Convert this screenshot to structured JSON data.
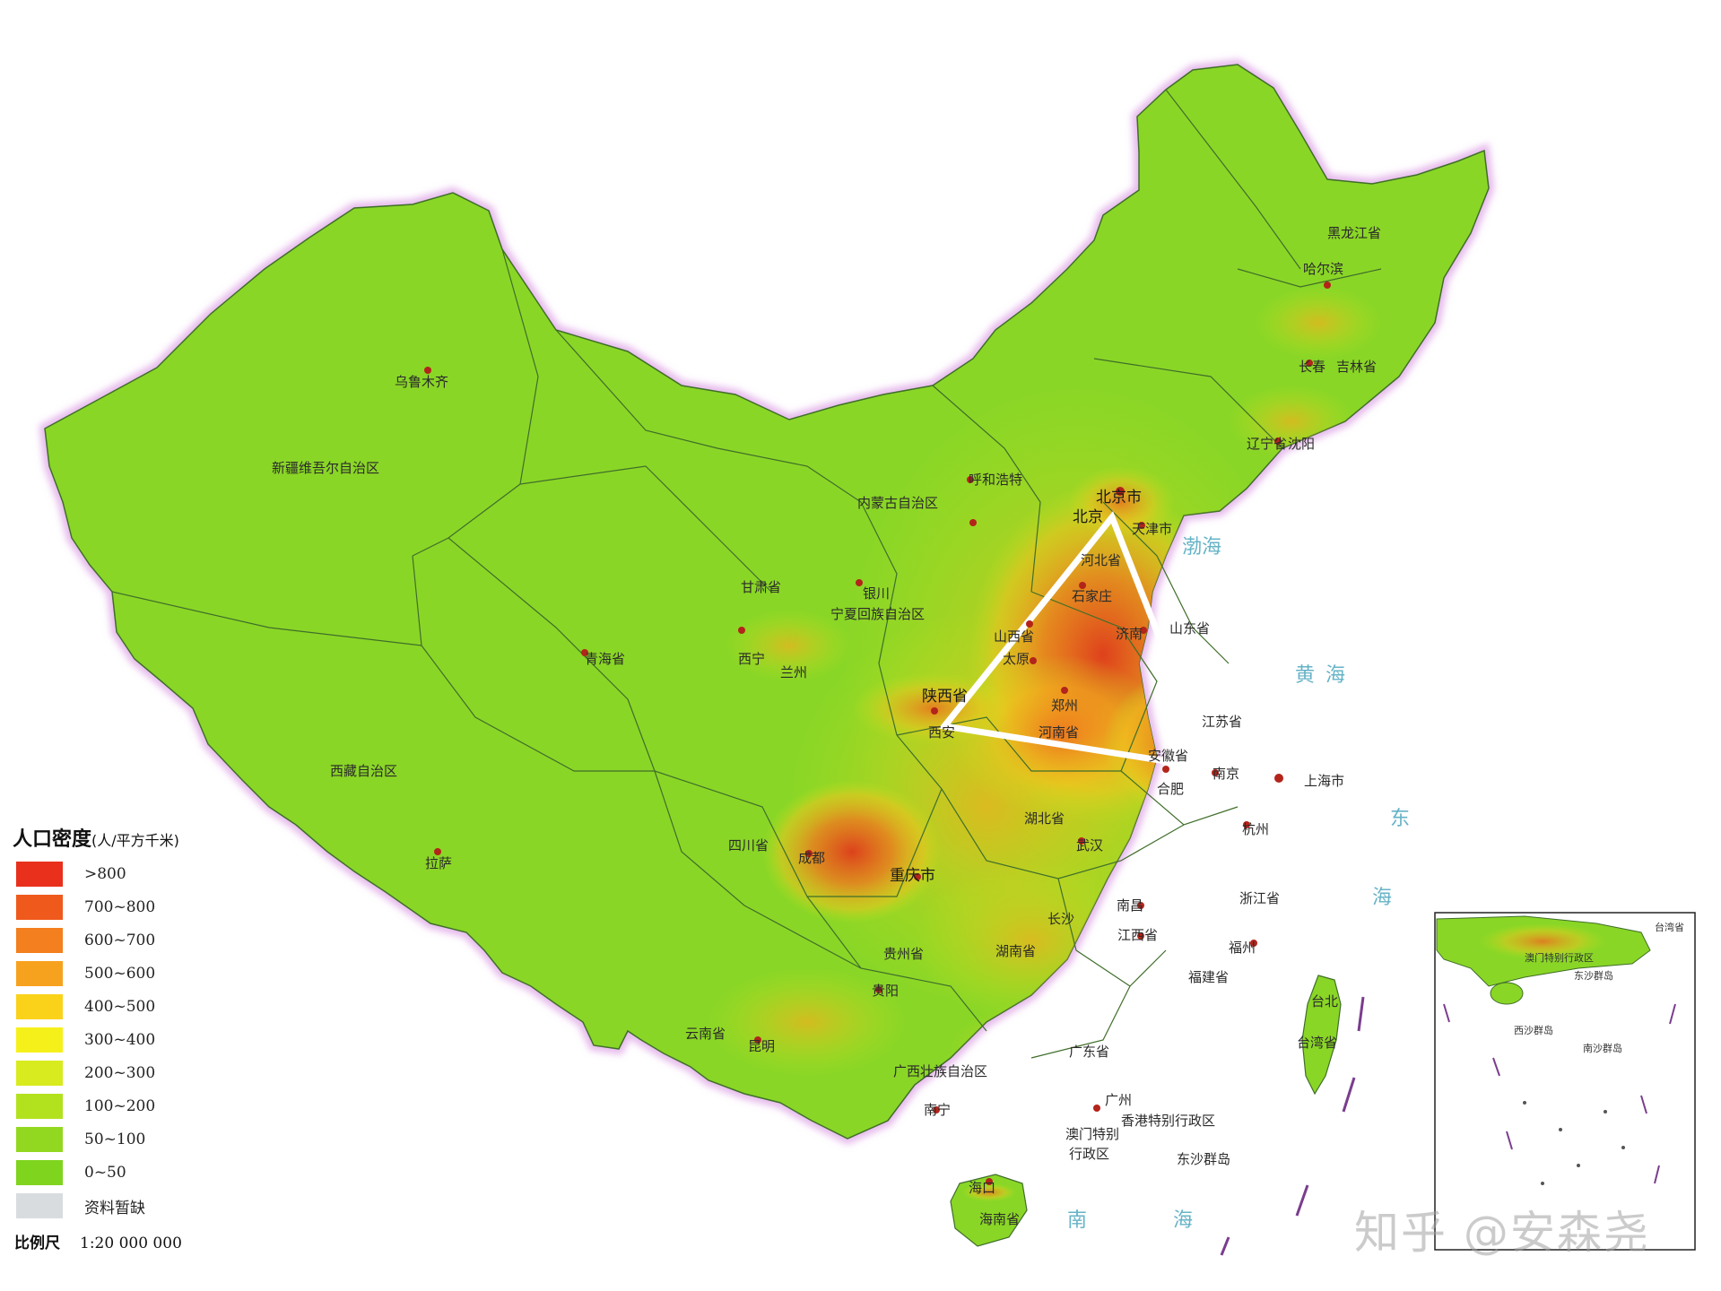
{
  "legend": {
    "title": "人口密度",
    "unit": "(人/平方千米)",
    "items": [
      {
        "label": ">800",
        "color": "#e8301c"
      },
      {
        "label": "700~800",
        "color": "#ef5a1c"
      },
      {
        "label": "600~700",
        "color": "#f47f1e"
      },
      {
        "label": "500~600",
        "color": "#f7a21e"
      },
      {
        "label": "400~500",
        "color": "#fbd21a"
      },
      {
        "label": "300~400",
        "color": "#f6f01a"
      },
      {
        "label": "200~300",
        "color": "#d8eb1e"
      },
      {
        "label": "100~200",
        "color": "#b2e21e"
      },
      {
        "label": "50~100",
        "color": "#93d820"
      },
      {
        "label": "0~50",
        "color": "#7fd41e"
      },
      {
        "label": "资料暂缺",
        "color": "#d9dcdf"
      }
    ],
    "scale_label": "比例尺",
    "scale_value": "1:20 000 000"
  },
  "places": {
    "xinjiang": "新疆维吾尔自治区",
    "urumqi": "乌鲁木齐",
    "xizang": "西藏自治区",
    "lhasa": "拉萨",
    "qinghai": "青海省",
    "xining": "西宁",
    "gansu": "甘肃省",
    "lanzhou": "兰州",
    "neimenggu": "内蒙古自治区",
    "hohhot": "呼和浩特",
    "ningxia": "宁夏回族自治区",
    "yinchuan": "银川",
    "heilongjiang": "黑龙江省",
    "harbin": "哈尔滨",
    "jilin": "吉林省",
    "changchun": "长春",
    "liaoning": "辽宁省",
    "shenyang": "沈阳",
    "beijing": "北京市",
    "beijing_city": "北京",
    "tianjin": "天津市",
    "hebei": "河北省",
    "shijiazhuang": "石家庄",
    "shanxi": "山西省",
    "taiyuan": "太原",
    "shandong": "山东省",
    "jinan": "济南",
    "shaanxi": "陕西省",
    "xian": "西安",
    "henan": "河南省",
    "zhengzhou": "郑州",
    "jiangsu": "江苏省",
    "nanjing": "南京",
    "anhui": "安徽省",
    "hefei": "合肥",
    "shanghai": "上海市",
    "hubei": "湖北省",
    "wuhan": "武汉",
    "zhejiang": "浙江省",
    "hangzhou": "杭州",
    "sichuan": "四川省",
    "chengdu": "成都",
    "chongqing": "重庆市",
    "hunan": "湖南省",
    "changsha": "长沙",
    "jiangxi": "江西省",
    "nanchang": "南昌",
    "fujian": "福建省",
    "fuzhou": "福州",
    "guizhou": "贵州省",
    "guiyang": "贵阳",
    "yunnan": "云南省",
    "kunming": "昆明",
    "guangxi": "广西壮族自治区",
    "nanning": "南宁",
    "guangdong": "广东省",
    "guangzhou": "广州",
    "hongkong": "香港特别行政区",
    "macao_1": "澳门特别",
    "macao_2": "行政区",
    "hainan": "海南省",
    "haikou": "海口",
    "taiwan": "台湾省",
    "taibei": "台北",
    "dongsha": "东沙群岛"
  },
  "seas": {
    "bohai": "渤海",
    "huanghai_1": "黄",
    "huanghai_2": "海",
    "donghai_1": "东",
    "donghai_2": "海",
    "nanhai_1": "南",
    "nanhai_2": "海"
  },
  "inset": {
    "label_1": "澳门特别行政区",
    "label_2": "台湾省",
    "label_3": "东沙群岛",
    "label_4": "西沙群岛",
    "label_5": "南沙群岛"
  },
  "watermark": "知乎 @安森尧",
  "colors": {
    "land": "#8ad626",
    "border": "#3f6e2a",
    "coast_glow": "#e6b9ec",
    "dense_red": "#e0431c",
    "dense_orange": "#f08a1e",
    "triangle": "#ffffff"
  }
}
